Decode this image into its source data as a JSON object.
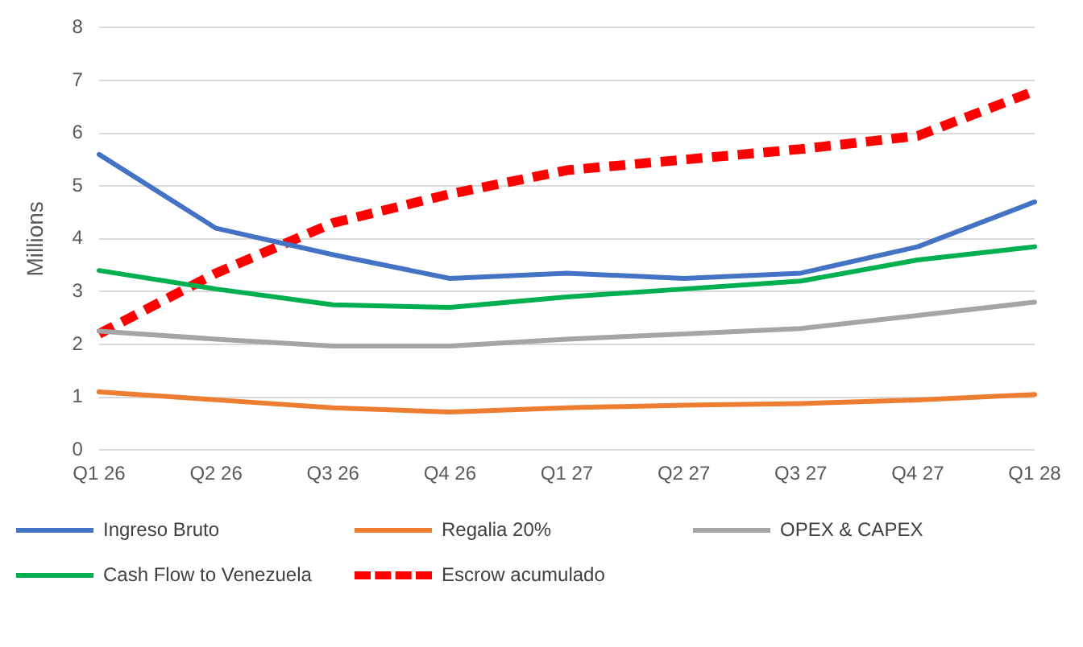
{
  "chart_data": {
    "type": "line",
    "ylabel": "Millions",
    "categories": [
      "Q1 26",
      "Q2 26",
      "Q3 26",
      "Q4 26",
      "Q1 27",
      "Q2 27",
      "Q3 27",
      "Q4 27",
      "Q1 28"
    ],
    "series": [
      {
        "name": "Ingreso Bruto",
        "color": "#4472c4",
        "values": [
          5.6,
          4.2,
          3.7,
          3.25,
          3.35,
          3.25,
          3.35,
          3.85,
          4.7
        ]
      },
      {
        "name": "Regalia 20%",
        "color": "#ed7d31",
        "values": [
          1.1,
          0.95,
          0.8,
          0.72,
          0.8,
          0.85,
          0.88,
          0.95,
          1.05
        ]
      },
      {
        "name": "OPEX & CAPEX",
        "color": "#a5a5a5",
        "values": [
          2.25,
          2.1,
          1.97,
          1.97,
          2.1,
          2.2,
          2.3,
          2.55,
          2.8
        ]
      },
      {
        "name": "Cash Flow to Venezuela",
        "color": "#00b050",
        "values": [
          3.4,
          3.05,
          2.75,
          2.7,
          2.9,
          3.05,
          3.2,
          3.6,
          3.85
        ]
      },
      {
        "name": "Escrow acumulado",
        "color": "#ff0000",
        "line_style": "dashed",
        "values": [
          2.2,
          3.35,
          4.3,
          4.85,
          5.3,
          5.5,
          5.7,
          5.95,
          6.8
        ]
      }
    ],
    "ylim": [
      0,
      8
    ],
    "yticks": [
      0,
      1,
      2,
      3,
      4,
      5,
      6,
      7,
      8
    ],
    "grid": "y",
    "legend": "bottom",
    "marker": "none"
  }
}
